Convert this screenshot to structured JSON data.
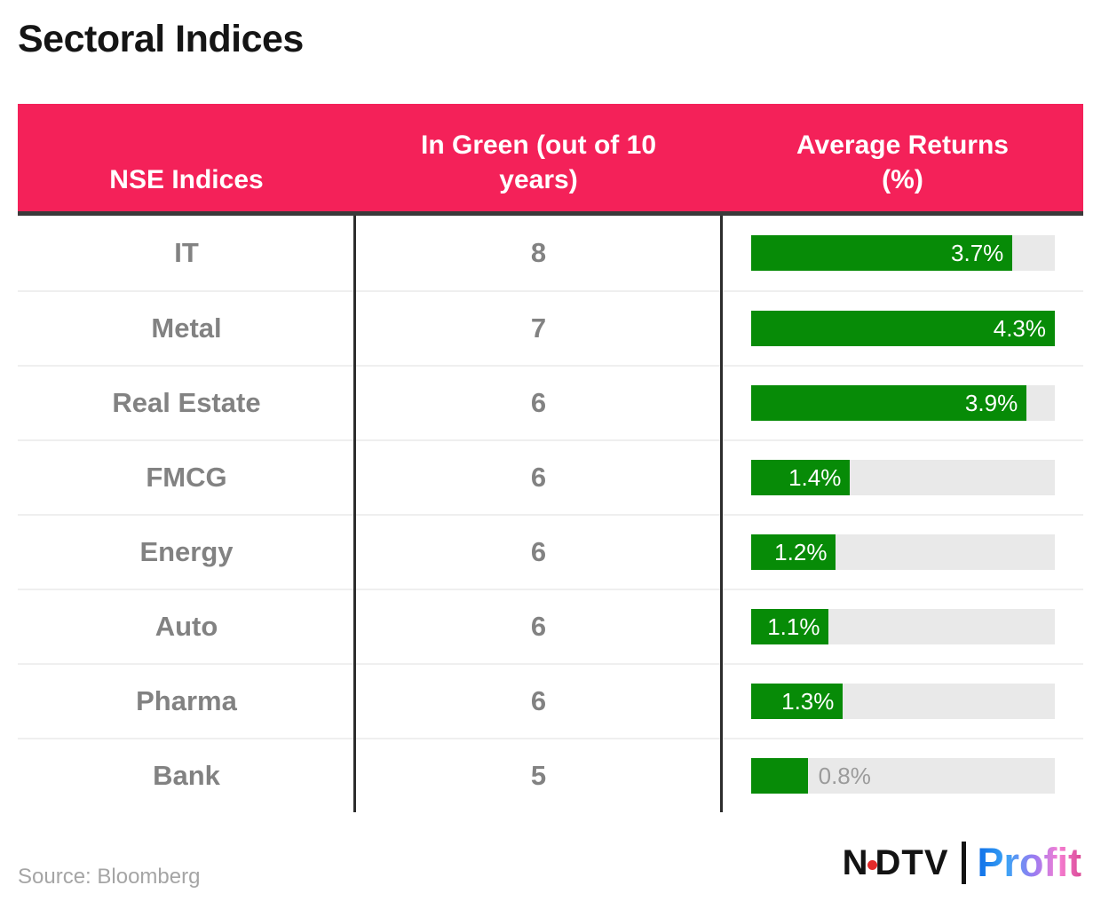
{
  "title": "Sectoral Indices",
  "table": {
    "headers": [
      {
        "lines": [
          "NSE Indices"
        ]
      },
      {
        "lines": [
          "In Green (out of 10",
          "years)"
        ]
      },
      {
        "lines": [
          "Average Returns",
          "(%)"
        ]
      }
    ],
    "rows": [
      {
        "index": "IT",
        "green_years": "8",
        "returns_label": "3.7%",
        "returns": 3.7
      },
      {
        "index": "Metal",
        "green_years": "7",
        "returns_label": "4.3%",
        "returns": 4.3
      },
      {
        "index": "Real Estate",
        "green_years": "6",
        "returns_label": "3.9%",
        "returns": 3.9
      },
      {
        "index": "FMCG",
        "green_years": "6",
        "returns_label": "1.4%",
        "returns": 1.4
      },
      {
        "index": "Energy",
        "green_years": "6",
        "returns_label": "1.2%",
        "returns": 1.2
      },
      {
        "index": "Auto",
        "green_years": "6",
        "returns_label": "1.1%",
        "returns": 1.1
      },
      {
        "index": "Pharma",
        "green_years": "6",
        "returns_label": "1.3%",
        "returns": 1.3
      },
      {
        "index": "Bank",
        "green_years": "5",
        "returns_label": "0.8%",
        "returns": 0.8
      }
    ]
  },
  "chart_data": {
    "type": "bar",
    "orientation": "horizontal",
    "title": "Sectoral Indices",
    "categories": [
      "IT",
      "Metal",
      "Real Estate",
      "FMCG",
      "Energy",
      "Auto",
      "Pharma",
      "Bank"
    ],
    "series": [
      {
        "name": "In Green (out of 10 years)",
        "values": [
          8,
          7,
          6,
          6,
          6,
          6,
          6,
          5
        ]
      },
      {
        "name": "Average Returns (%)",
        "values": [
          3.7,
          4.3,
          3.9,
          1.4,
          1.2,
          1.1,
          1.3,
          0.8
        ]
      }
    ],
    "xlabel": "Average Returns (%)",
    "xlim": [
      0,
      4.3
    ],
    "grid": false,
    "legend": "none",
    "data_labels": [
      "3.7%",
      "4.3%",
      "3.9%",
      "1.4%",
      "1.2%",
      "1.1%",
      "1.3%",
      "0.8%"
    ]
  },
  "footer": {
    "source": "Source: Bloomberg",
    "logo": {
      "ndtv_left": "N",
      "ndtv_right": "DTV",
      "profit": "Profit"
    }
  },
  "colors": {
    "header_pink": "#F42159",
    "bar_green": "#078b07",
    "bar_track": "#e9e9e9",
    "divider_dark": "#2d2d2d",
    "header_border_dark": "#3a3a3a",
    "row_text_gray": "#828282",
    "outside_label_gray": "#9b9b9b",
    "logo_red_dot": "#e42a2a"
  }
}
